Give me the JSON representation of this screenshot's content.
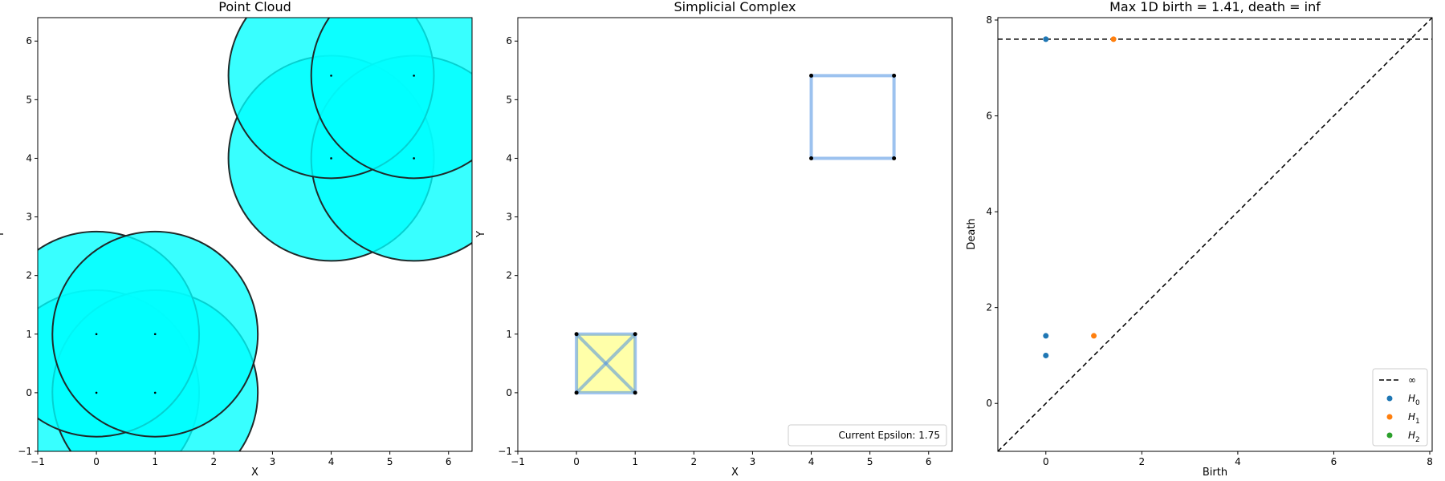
{
  "chart_data": [
    {
      "type": "scatter",
      "title": "Point Cloud",
      "xlabel": "X",
      "ylabel": "Y",
      "xlim": [
        -1,
        6.4
      ],
      "ylim": [
        -1,
        6.4
      ],
      "xticks": [
        "-1",
        "0",
        "1",
        "2",
        "3",
        "4",
        "5",
        "6"
      ],
      "yticks": [
        "-1",
        "0",
        "1",
        "2",
        "3",
        "4",
        "5",
        "6"
      ],
      "points": [
        {
          "x": 0,
          "y": 0
        },
        {
          "x": 1,
          "y": 0
        },
        {
          "x": 0,
          "y": 1
        },
        {
          "x": 1,
          "y": 1
        },
        {
          "x": 4,
          "y": 4
        },
        {
          "x": 5.41,
          "y": 4
        },
        {
          "x": 4,
          "y": 5.41
        },
        {
          "x": 5.41,
          "y": 5.41
        }
      ],
      "ball_radius": 1.75,
      "ball_color": "#00ffff",
      "ball_edge_color": "#1f2a2a"
    },
    {
      "type": "scatter",
      "title": "Simplicial Complex",
      "xlabel": "X",
      "ylabel": "Y",
      "xlim": [
        -1,
        6.4
      ],
      "ylim": [
        -1,
        6.4
      ],
      "xticks": [
        "-1",
        "0",
        "1",
        "2",
        "3",
        "4",
        "5",
        "6"
      ],
      "yticks": [
        "-1",
        "0",
        "1",
        "2",
        "3",
        "4",
        "5",
        "6"
      ],
      "points": [
        {
          "x": 0,
          "y": 0
        },
        {
          "x": 1,
          "y": 0
        },
        {
          "x": 0,
          "y": 1
        },
        {
          "x": 1,
          "y": 1
        },
        {
          "x": 4,
          "y": 4
        },
        {
          "x": 5.41,
          "y": 4
        },
        {
          "x": 4,
          "y": 5.41
        },
        {
          "x": 5.41,
          "y": 5.41
        }
      ],
      "edges": [
        [
          0,
          1
        ],
        [
          0,
          2
        ],
        [
          1,
          3
        ],
        [
          2,
          3
        ],
        [
          0,
          3
        ],
        [
          1,
          2
        ],
        [
          4,
          5
        ],
        [
          4,
          6
        ],
        [
          5,
          7
        ],
        [
          6,
          7
        ]
      ],
      "triangles": [
        [
          0,
          1,
          3
        ],
        [
          0,
          2,
          3
        ]
      ],
      "edge_color": "#4a90e2",
      "triangle_color": "#ffffa0",
      "legend_text": "Current Epsilon: 1.75"
    },
    {
      "type": "scatter",
      "title": "Max 1D birth = 1.41, death = inf",
      "xlabel": "Birth",
      "ylabel": "Death",
      "xlim": [
        -1,
        8.05
      ],
      "ylim": [
        -1,
        8.05
      ],
      "xticks": [
        "0",
        "2",
        "4",
        "6",
        "8"
      ],
      "yticks": [
        "0",
        "2",
        "4",
        "6",
        "8"
      ],
      "infinity_value": 7.6,
      "series": [
        {
          "name": "H_0",
          "color": "#1f77b4",
          "points": [
            {
              "birth": 0,
              "death": 1.0
            },
            {
              "birth": 0,
              "death": 1.41
            },
            {
              "birth": 0,
              "death": 7.6
            }
          ]
        },
        {
          "name": "H_1",
          "color": "#ff7f0e",
          "points": [
            {
              "birth": 1.0,
              "death": 1.41
            },
            {
              "birth": 1.41,
              "death": 7.6
            }
          ]
        },
        {
          "name": "H_2",
          "color": "#2ca02c",
          "points": []
        }
      ],
      "legend": [
        {
          "symbol": "line",
          "label": "∞",
          "sub": ""
        },
        {
          "symbol": "dot",
          "label": "H",
          "sub": "0",
          "color": "#1f77b4"
        },
        {
          "symbol": "dot",
          "label": "H",
          "sub": "1",
          "color": "#ff7f0e"
        },
        {
          "symbol": "dot",
          "label": "H",
          "sub": "2",
          "color": "#2ca02c"
        }
      ]
    }
  ]
}
